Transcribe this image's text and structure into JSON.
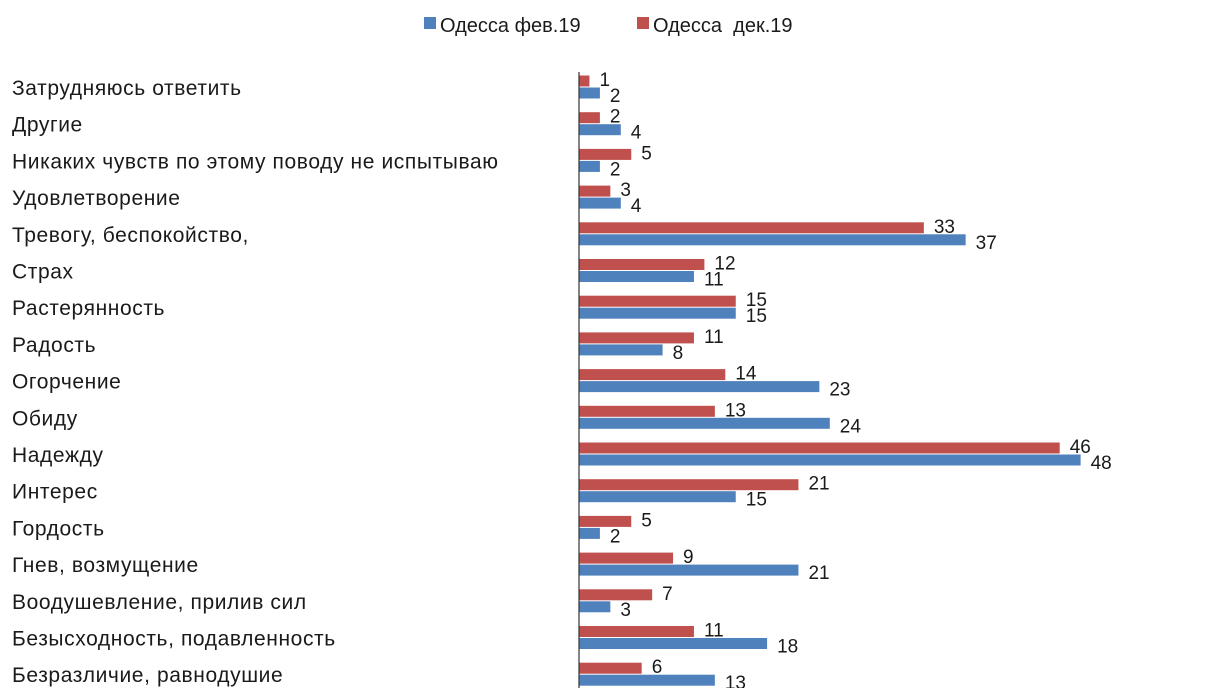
{
  "chart_data": {
    "type": "bar",
    "orientation": "horizontal",
    "categories": [
      "Затрудняюсь ответить",
      "Другие",
      "Никаких чувств по этому поводу не испытываю",
      "Удовлетворение",
      "Тревогу, беспокойство,",
      "Страх",
      "Растерянность",
      "Радость",
      "Огорчение",
      "Обиду",
      "Надежду",
      "Интерес",
      "Гордость",
      "Гнев, возмущение",
      "Воодушевление, прилив сил",
      "Безысходность, подавленность",
      "Безразличие, равнодушие"
    ],
    "series": [
      {
        "name": "Одесса фев.19",
        "color": "#4f81bd",
        "values": [
          2,
          4,
          2,
          4,
          37,
          11,
          15,
          8,
          23,
          24,
          48,
          15,
          2,
          21,
          3,
          18,
          13
        ]
      },
      {
        "name": "Одесса  дек.19",
        "color": "#c0504d",
        "values": [
          1,
          2,
          5,
          3,
          33,
          12,
          15,
          11,
          14,
          13,
          46,
          21,
          5,
          9,
          7,
          11,
          6
        ]
      }
    ],
    "title": "",
    "xlabel": "",
    "ylabel": "",
    "xlim": [
      0,
      50
    ],
    "grid": false,
    "legend": "top-center",
    "data_labels": true
  }
}
